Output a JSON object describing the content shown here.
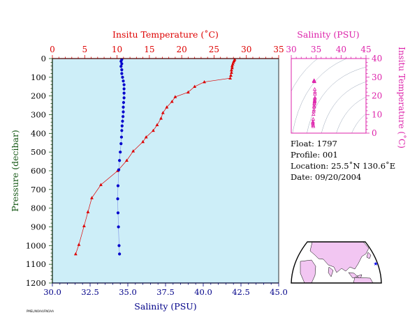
{
  "colors": {
    "temperature": "#dd0000",
    "salinity_main": "#0000cc",
    "salinity_inset": "#dd22aa",
    "plot_bg": "#cdeef8",
    "axis_bottom": "#000088",
    "axis_left": "#115511"
  },
  "info": {
    "float": "Float:  1797",
    "profile": "Profile:  001",
    "location": "Location:  25.5˚N  130.6˚E",
    "date": "Date:  09/20/2004"
  },
  "credit": "PMEL/NOAA/FNOAA",
  "chart_data": [
    {
      "type": "line",
      "name": "main-profile",
      "top_axis": {
        "label": "Insitu Temperature (˚C)",
        "range": [
          0,
          35
        ],
        "ticks": [
          "0",
          "5",
          "10",
          "15",
          "20",
          "25",
          "30",
          "35"
        ]
      },
      "bottom_axis": {
        "label": "Salinity (PSU)",
        "range": [
          30,
          45
        ],
        "ticks": [
          "30.0",
          "32.5",
          "35.0",
          "37.5",
          "40.0",
          "42.5",
          "45.0"
        ]
      },
      "left_axis": {
        "label": "Pressure (decibar)",
        "range": [
          0,
          1200
        ],
        "inverted": true,
        "ticks": [
          "0",
          "100",
          "200",
          "300",
          "400",
          "500",
          "600",
          "700",
          "800",
          "900",
          "1000",
          "1100",
          "1200"
        ]
      },
      "series": [
        {
          "axis": "top",
          "marker": "triangle",
          "points": [
            [
              28.2,
              5
            ],
            [
              28.1,
              12
            ],
            [
              28.0,
              20
            ],
            [
              27.9,
              30
            ],
            [
              27.8,
              40
            ],
            [
              27.8,
              50
            ],
            [
              27.7,
              62
            ],
            [
              27.7,
              75
            ],
            [
              27.6,
              90
            ],
            [
              27.5,
              105
            ],
            [
              23.5,
              125
            ],
            [
              22.0,
              150
            ],
            [
              21.0,
              180
            ],
            [
              19.0,
              205
            ],
            [
              18.5,
              230
            ],
            [
              17.7,
              260
            ],
            [
              17.1,
              290
            ],
            [
              16.8,
              320
            ],
            [
              16.2,
              355
            ],
            [
              15.6,
              385
            ],
            [
              14.5,
              420
            ],
            [
              14.0,
              445
            ],
            [
              12.5,
              495
            ],
            [
              11.5,
              545
            ],
            [
              10.1,
              600
            ],
            [
              7.5,
              675
            ],
            [
              6.1,
              745
            ],
            [
              5.5,
              820
            ],
            [
              4.9,
              895
            ],
            [
              4.1,
              995
            ],
            [
              3.6,
              1045
            ]
          ]
        },
        {
          "axis": "bottom",
          "marker": "circle",
          "points": [
            [
              34.6,
              5
            ],
            [
              34.55,
              15
            ],
            [
              34.6,
              28
            ],
            [
              34.55,
              42
            ],
            [
              34.6,
              60
            ],
            [
              34.6,
              80
            ],
            [
              34.65,
              100
            ],
            [
              34.7,
              120
            ],
            [
              34.75,
              140
            ],
            [
              34.75,
              162
            ],
            [
              34.75,
              185
            ],
            [
              34.75,
              210
            ],
            [
              34.72,
              235
            ],
            [
              34.7,
              260
            ],
            [
              34.7,
              285
            ],
            [
              34.68,
              310
            ],
            [
              34.65,
              335
            ],
            [
              34.62,
              360
            ],
            [
              34.6,
              385
            ],
            [
              34.58,
              420
            ],
            [
              34.55,
              455
            ],
            [
              34.5,
              500
            ],
            [
              34.45,
              545
            ],
            [
              34.4,
              595
            ],
            [
              34.35,
              680
            ],
            [
              34.33,
              750
            ],
            [
              34.35,
              825
            ],
            [
              34.38,
              900
            ],
            [
              34.42,
              1000
            ],
            [
              34.45,
              1045
            ]
          ]
        }
      ]
    },
    {
      "type": "scatter",
      "name": "ts-diagram",
      "top_axis": {
        "label": "Salinity (PSU)",
        "range": [
          30,
          45
        ],
        "ticks": [
          "30",
          "35",
          "40",
          "45"
        ]
      },
      "right_axis": {
        "label": "Insitu Temperature (˚C)",
        "range": [
          0,
          40
        ],
        "ticks": [
          "0",
          "10",
          "20",
          "30",
          "40"
        ]
      },
      "grid": "density-isolines",
      "points": [
        [
          34.6,
          28.2
        ],
        [
          34.55,
          28.1
        ],
        [
          34.6,
          28.0
        ],
        [
          34.55,
          27.9
        ],
        [
          34.6,
          27.8
        ],
        [
          34.6,
          27.7
        ],
        [
          34.65,
          27.6
        ],
        [
          34.7,
          23.5
        ],
        [
          34.75,
          22.0
        ],
        [
          34.75,
          21.0
        ],
        [
          34.75,
          19.0
        ],
        [
          34.72,
          18.5
        ],
        [
          34.7,
          17.7
        ],
        [
          34.7,
          17.1
        ],
        [
          34.68,
          16.8
        ],
        [
          34.65,
          16.2
        ],
        [
          34.62,
          15.6
        ],
        [
          34.6,
          14.5
        ],
        [
          34.58,
          14.0
        ],
        [
          34.55,
          12.5
        ],
        [
          34.5,
          11.5
        ],
        [
          34.45,
          10.1
        ],
        [
          34.4,
          7.5
        ],
        [
          34.35,
          6.1
        ],
        [
          34.33,
          5.5
        ],
        [
          34.35,
          4.9
        ],
        [
          34.38,
          4.1
        ],
        [
          34.42,
          3.6
        ]
      ]
    }
  ],
  "map": {
    "marker_lon": 130.6,
    "marker_lat": 25.5
  }
}
